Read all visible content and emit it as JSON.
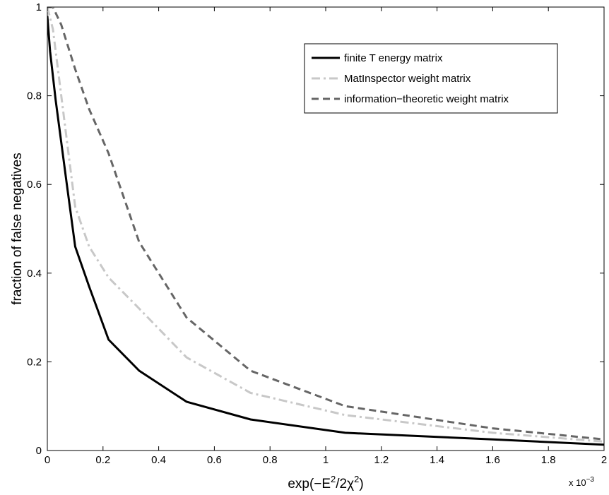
{
  "chart_data": {
    "type": "line",
    "title": "",
    "xlabel": {
      "base": "exp(−E",
      "sup1": "2",
      "mid": "/2χ",
      "sup2": "2",
      "end": ")"
    },
    "ylabel": "fraction of false negatives",
    "x_multiplier": {
      "prefix": "x 10",
      "exponent": "−3"
    },
    "xlim": [
      0,
      2
    ],
    "ylim": [
      0,
      1
    ],
    "xticks": [
      0,
      0.2,
      0.4,
      0.6,
      0.8,
      1,
      1.2,
      1.4,
      1.6,
      1.8,
      2
    ],
    "xtick_labels": [
      "0",
      "0.2",
      "0.4",
      "0.6",
      "0.8",
      "1",
      "1.2",
      "1.4",
      "1.6",
      "1.8",
      "2"
    ],
    "yticks": [
      0,
      0.2,
      0.4,
      0.6,
      0.8,
      1
    ],
    "ytick_labels": [
      "0",
      "0.2",
      "0.4",
      "0.6",
      "0.8",
      "1"
    ],
    "grid": false,
    "legend_position": "top-right",
    "series": [
      {
        "name": "finite T energy matrix",
        "color": "#000000",
        "style": "solid",
        "x": [
          0,
          0.01,
          0.03,
          0.07,
          0.1,
          0.15,
          0.22,
          0.33,
          0.5,
          0.73,
          1.07,
          1.6,
          2.0
        ],
        "y": [
          0.98,
          0.9,
          0.79,
          0.6,
          0.46,
          0.37,
          0.25,
          0.18,
          0.11,
          0.07,
          0.04,
          0.025,
          0.013
        ]
      },
      {
        "name": "MatInspector weight matrix",
        "color": "#c8c8c8",
        "style": "dashdot",
        "x": [
          0,
          0.02,
          0.05,
          0.1,
          0.15,
          0.22,
          0.33,
          0.5,
          0.73,
          1.07,
          1.6,
          2.0
        ],
        "y": [
          1.0,
          0.95,
          0.8,
          0.55,
          0.46,
          0.39,
          0.32,
          0.21,
          0.13,
          0.08,
          0.04,
          0.02
        ]
      },
      {
        "name": "information−theoretic weight matrix",
        "color": "#666666",
        "style": "dashed",
        "x": [
          0,
          0.02,
          0.05,
          0.1,
          0.15,
          0.22,
          0.33,
          0.5,
          0.73,
          1.07,
          1.6,
          2.0
        ],
        "y": [
          1.0,
          1.0,
          0.96,
          0.86,
          0.77,
          0.67,
          0.47,
          0.3,
          0.18,
          0.1,
          0.05,
          0.025
        ]
      }
    ]
  }
}
